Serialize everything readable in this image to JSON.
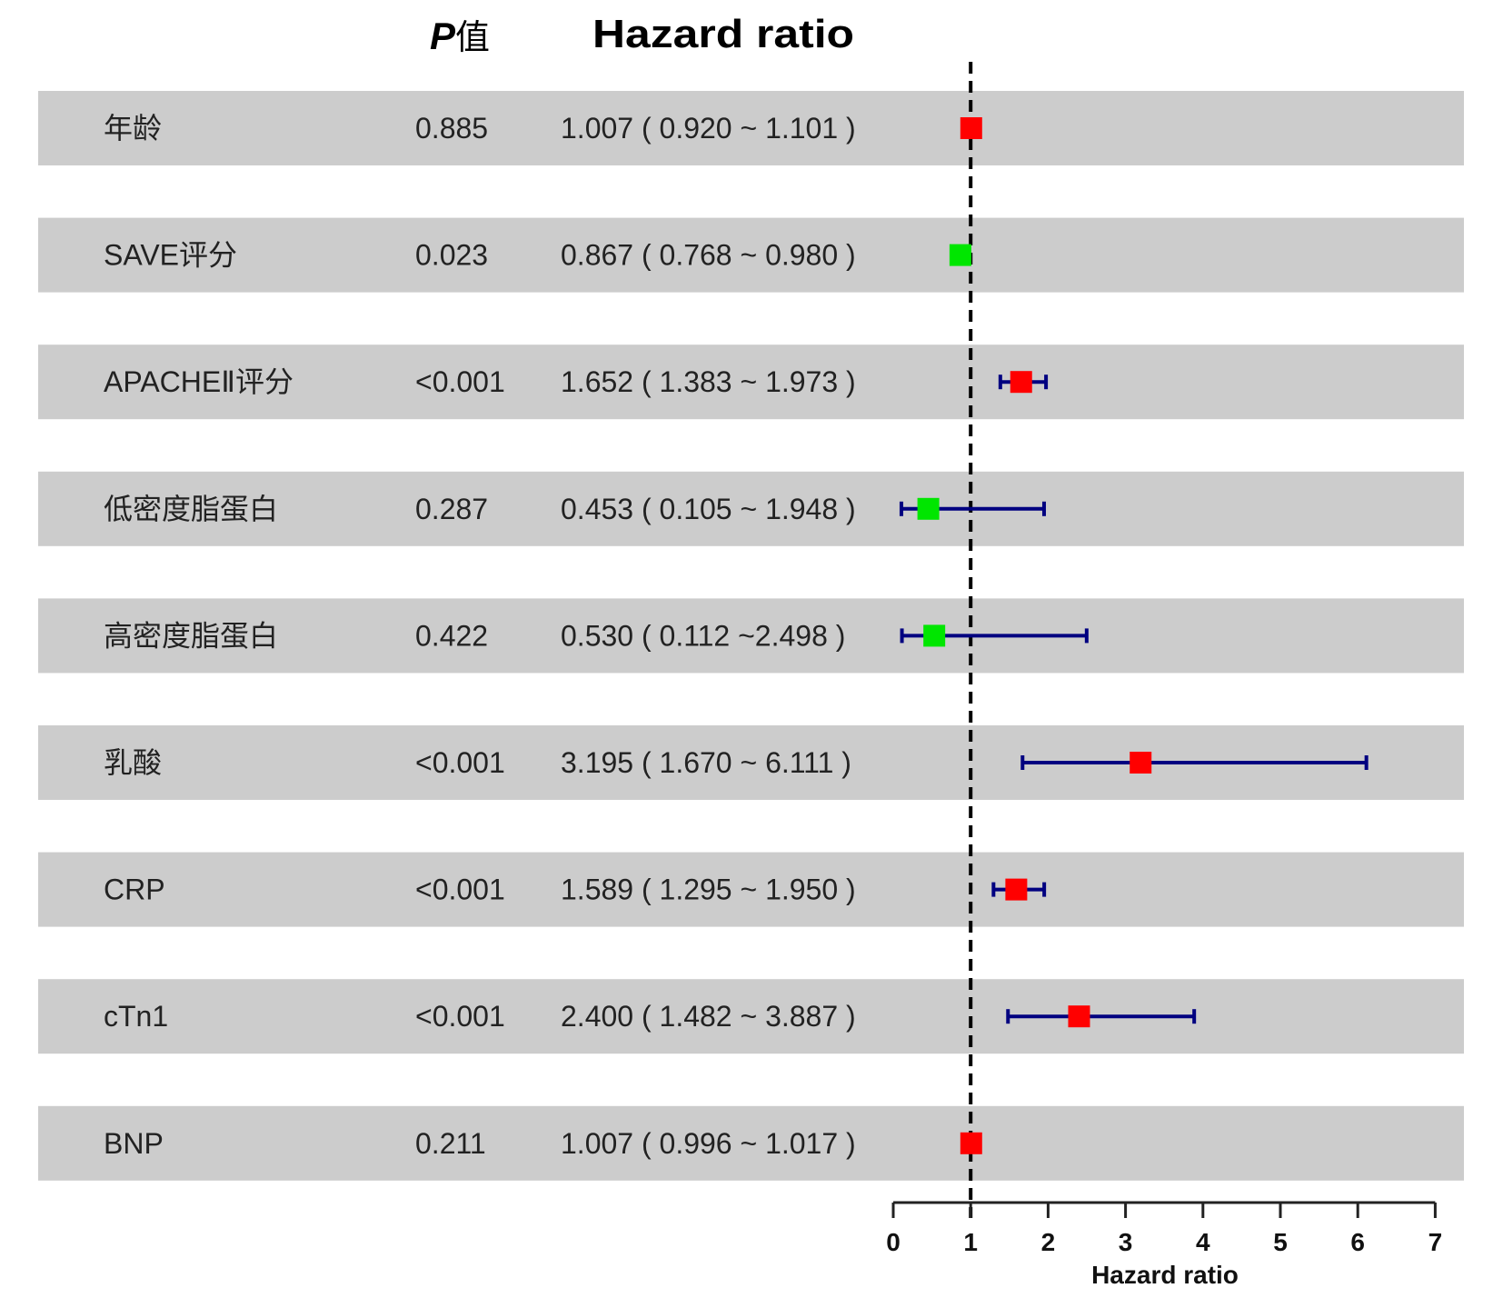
{
  "header": {
    "p_label_italic": "P",
    "p_label_suffix": "值",
    "hr_label": "Hazard ratio"
  },
  "colors": {
    "band": "#cccccc",
    "risk_marker": "#ff0000",
    "protective_marker": "#00e600",
    "ci_line": "#000080",
    "ref_line": "#000000"
  },
  "chart_data": {
    "type": "forest",
    "title": "",
    "xlabel": "Hazard ratio",
    "xlim": [
      0,
      7
    ],
    "xticks": [
      "0",
      "1",
      "2",
      "3",
      "4",
      "5",
      "6",
      "7"
    ],
    "reference_line": 1,
    "columns": [
      "",
      "P值",
      "Hazard ratio"
    ],
    "rows": [
      {
        "label": "年龄",
        "p": "0.885",
        "hr_text": "1.007 ( 0.920 ~ 1.101 )",
        "hr": 1.007,
        "lower": 0.92,
        "upper": 1.101,
        "group": "risk"
      },
      {
        "label": "SAVE评分",
        "p": "0.023",
        "hr_text": "0.867 ( 0.768 ~ 0.980 )",
        "hr": 0.867,
        "lower": 0.768,
        "upper": 0.98,
        "group": "protective"
      },
      {
        "label": "APACHEⅡ评分",
        "p": "<0.001",
        "hr_text": "1.652 ( 1.383 ~ 1.973 )",
        "hr": 1.652,
        "lower": 1.383,
        "upper": 1.973,
        "group": "risk"
      },
      {
        "label": "低密度脂蛋白",
        "p": "0.287",
        "hr_text": "0.453 ( 0.105 ~ 1.948 )",
        "hr": 0.453,
        "lower": 0.105,
        "upper": 1.948,
        "group": "protective"
      },
      {
        "label": "高密度脂蛋白",
        "p": "0.422",
        "hr_text": "0.530 ( 0.112 ~2.498 )",
        "hr": 0.53,
        "lower": 0.112,
        "upper": 2.498,
        "group": "protective"
      },
      {
        "label": "乳酸",
        "p": "<0.001",
        "hr_text": "3.195 ( 1.670 ~ 6.111 )",
        "hr": 3.195,
        "lower": 1.67,
        "upper": 6.111,
        "group": "risk"
      },
      {
        "label": "CRP",
        "p": "<0.001",
        "hr_text": "1.589 ( 1.295 ~ 1.950 )",
        "hr": 1.589,
        "lower": 1.295,
        "upper": 1.95,
        "group": "risk"
      },
      {
        "label": "cTn1",
        "p": "<0.001",
        "hr_text": "2.400 ( 1.482 ~ 3.887 )",
        "hr": 2.4,
        "lower": 1.482,
        "upper": 3.887,
        "group": "risk"
      },
      {
        "label": "BNP",
        "p": "0.211",
        "hr_text": "1.007 ( 0.996 ~ 1.017 )",
        "hr": 1.007,
        "lower": 0.996,
        "upper": 1.017,
        "group": "risk"
      }
    ]
  }
}
